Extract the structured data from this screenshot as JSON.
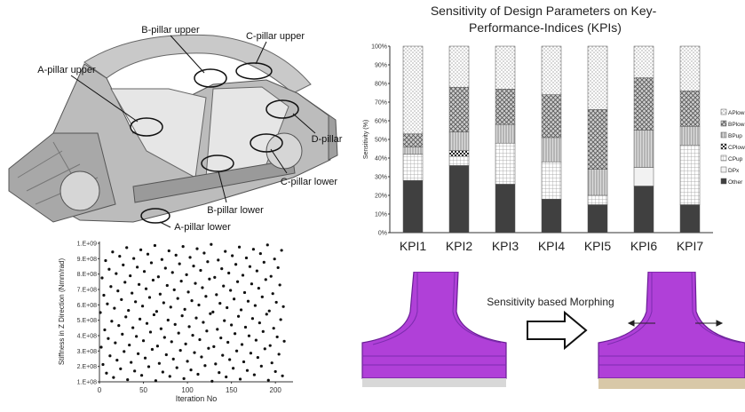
{
  "car_labels": [
    {
      "key": "b_upper",
      "text": "B-pillar upper"
    },
    {
      "key": "c_upper",
      "text": "C-pillar upper"
    },
    {
      "key": "a_upper",
      "text": "A-pillar upper"
    },
    {
      "key": "d_pillar",
      "text": "D-pillar"
    },
    {
      "key": "c_lower",
      "text": "C-pillar lower"
    },
    {
      "key": "b_lower",
      "text": "B-pillar lower"
    },
    {
      "key": "a_lower",
      "text": "A-pillar lower"
    }
  ],
  "morph": {
    "caption": "Sensitivity based Morphing"
  },
  "colors": {
    "morph_fill": "#b040d8",
    "morph_edge": "#6a1e96",
    "bar_dark": "#404040",
    "car_body": "#b8b8b8"
  },
  "chart_data": [
    {
      "type": "bar",
      "stacked": true,
      "title": "Sensitivity of Design Parameters on Key-Performance-Indices (KPIs)",
      "ylabel": "Sensitivity (%)",
      "xlabel": "",
      "ylim": [
        0,
        100
      ],
      "yticks": [
        "0%",
        "10%",
        "20%",
        "30%",
        "40%",
        "50%",
        "60%",
        "70%",
        "80%",
        "90%",
        "100%"
      ],
      "categories": [
        "KPI1",
        "KPI2",
        "KPI3",
        "KPI4",
        "KPI5",
        "KPI6",
        "KPI7"
      ],
      "legend_position": "right",
      "series": [
        {
          "name": "Other",
          "pattern": "solid-dark",
          "values": [
            28,
            36,
            26,
            18,
            15,
            25,
            15
          ]
        },
        {
          "name": "DPx",
          "pattern": "white",
          "values": [
            0,
            0,
            0,
            0,
            0,
            10,
            0
          ]
        },
        {
          "name": "CPup",
          "pattern": "grid",
          "values": [
            14,
            5,
            22,
            20,
            5,
            0,
            32
          ]
        },
        {
          "name": "CPlow",
          "pattern": "checker",
          "values": [
            0,
            3,
            0,
            0,
            0,
            0,
            0
          ]
        },
        {
          "name": "BPup",
          "pattern": "vertical",
          "values": [
            4,
            10,
            10,
            13,
            14,
            20,
            10
          ]
        },
        {
          "name": "BPlow",
          "pattern": "crosshatch",
          "values": [
            7,
            24,
            19,
            23,
            32,
            28,
            19
          ]
        },
        {
          "name": "APlow",
          "pattern": "dots",
          "values": [
            47,
            22,
            23,
            26,
            34,
            17,
            24
          ]
        }
      ]
    },
    {
      "type": "scatter",
      "title": "",
      "xlabel": "Iteration No",
      "ylabel": "Stiffness in Z Direction (Nmm/rad)",
      "xlim": [
        0,
        220
      ],
      "xticks": [
        "0",
        "50",
        "100",
        "150",
        "200"
      ],
      "ylim": [
        100000000,
        1000000000
      ],
      "yticks": [
        "1.E+08",
        "2.E+08",
        "3.E+08",
        "4.E+08",
        "5.E+08",
        "6.E+08",
        "7.E+08",
        "8.E+08",
        "9.E+08",
        "1.E+09"
      ],
      "grid": false,
      "points_description": "quasi-random space-filling samples, one per iteration from 1 to 210, stiffness between 1.E+08 and 1.E+09"
    }
  ]
}
